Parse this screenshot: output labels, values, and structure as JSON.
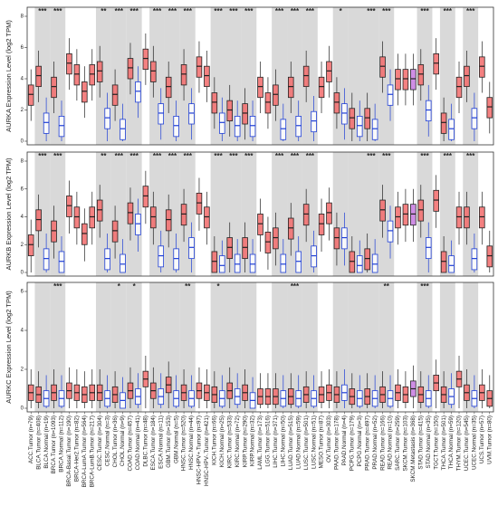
{
  "chart_data": {
    "type": "box",
    "tumor_color": "#f26b6b",
    "normal_color": "#1f3fd6",
    "metastasis_color": "#c77ae0",
    "categories": [
      "ACC.Tumor (n=79)",
      "BLCA.Tumor (n=408)",
      "BLCA.Normal (n=19)",
      "BRCA.Tumor (n=1093)",
      "BRCA.Normal (n=112)",
      "BRCA-Basal.Tumor (n=190)",
      "BRCA-Her2.Tumor (n=82)",
      "BRCA-LumA.Tumor (n=564)",
      "BRCA-LumB.Tumor (n=217)",
      "CESC.Tumor (n=304)",
      "CESC.Normal (n=3)",
      "CHOL.Tumor (n=36)",
      "CHOL.Normal (n=9)",
      "COAD.Tumor (n=457)",
      "COAD.Normal (n=41)",
      "DLBC.Tumor (n=48)",
      "ESCA.Tumor (n=184)",
      "ESCA.Normal (n=11)",
      "GBM.Tumor (n=153)",
      "GBM.Normal (n=5)",
      "HNSC.Tumor (n=520)",
      "HNSC.Normal (n=44)",
      "HNSC-HPV+.Tumor (n=97)",
      "HNSC-HPV-.Tumor (n=421)",
      "KICH.Tumor (n=66)",
      "KICH.Normal (n=25)",
      "KIRC.Tumor (n=533)",
      "KIRC.Normal (n=72)",
      "KIRP.Tumor (n=290)",
      "KIRP.Normal (n=32)",
      "LAML.Tumor (n=173)",
      "LGG.Tumor (n=516)",
      "LIHC.Tumor (n=371)",
      "LIHC.Normal (n=50)",
      "LUAD.Tumor (n=515)",
      "LUAD.Normal (n=59)",
      "LUSC.Tumor (n=501)",
      "LUSC.Normal (n=51)",
      "MESO.Tumor (n=87)",
      "OV.Tumor (n=303)",
      "PAAD.Tumor (n=178)",
      "PAAD.Normal (n=4)",
      "PCPG.Tumor (n=179)",
      "PCPG.Normal (n=3)",
      "PRAD.Tumor (n=497)",
      "PRAD.Normal (n=52)",
      "READ.Tumor (n=166)",
      "READ.Normal (n=10)",
      "SARC.Tumor (n=259)",
      "SKCM.Tumor (n=103)",
      "SKCM.Metastasis (n=368)",
      "STAD.Tumor (n=415)",
      "STAD.Normal (n=35)",
      "TGCT.Tumor (n=150)",
      "THCA.Tumor (n=501)",
      "THCA.Normal (n=59)",
      "THYM.Tumor (n=120)",
      "UCEC.Tumor (n=545)",
      "UCEC.Normal (n=35)",
      "UCS.Tumor (n=57)",
      "UVM.Tumor (n=80)"
    ],
    "panels": [
      {
        "ylabel": "AURKA Expression Level (log2 TPM)",
        "ylim": [
          0,
          8
        ],
        "yticks": [
          0,
          2,
          4,
          6,
          8
        ],
        "median": [
          3.0,
          4.2,
          1.2,
          3.5,
          1.0,
          5.0,
          4.3,
          3.2,
          4.3,
          4.5,
          1.5,
          3.0,
          0.8,
          4.7,
          3.2,
          5.3,
          4.5,
          1.8,
          3.5,
          1.0,
          4.3,
          1.8,
          4.8,
          4.2,
          2.5,
          1.2,
          2.0,
          1.0,
          1.8,
          1.0,
          3.5,
          2.5,
          3.0,
          0.8,
          3.5,
          1.0,
          4.2,
          1.3,
          3.5,
          4.5,
          2.5,
          1.8,
          1.5,
          1.0,
          1.5,
          0.8,
          4.8,
          3.0,
          4.0,
          4.0,
          4.0,
          4.3,
          2.0,
          5.0,
          1.2,
          0.8,
          3.5,
          4.2,
          1.5,
          4.8,
          2.2
        ],
        "q1": [
          2.3,
          3.5,
          0.5,
          2.8,
          0.3,
          4.3,
          3.6,
          2.5,
          3.6,
          3.8,
          0.8,
          2.3,
          0.1,
          4.0,
          2.5,
          4.6,
          3.8,
          1.1,
          2.8,
          0.3,
          3.6,
          1.1,
          4.1,
          3.5,
          1.8,
          0.5,
          1.3,
          0.3,
          1.1,
          0.3,
          2.8,
          1.8,
          2.3,
          0.1,
          2.8,
          0.3,
          3.5,
          0.6,
          2.8,
          3.8,
          1.8,
          1.1,
          0.8,
          0.3,
          0.8,
          0.1,
          4.1,
          2.3,
          3.3,
          3.3,
          3.3,
          3.6,
          1.3,
          4.3,
          0.5,
          0.1,
          2.8,
          3.5,
          0.8,
          4.1,
          1.5
        ],
        "q3": [
          3.6,
          4.8,
          1.8,
          4.1,
          1.6,
          5.6,
          4.9,
          3.8,
          4.9,
          5.1,
          2.1,
          3.6,
          1.4,
          5.3,
          3.8,
          5.9,
          5.1,
          2.4,
          4.1,
          1.6,
          4.9,
          2.4,
          5.4,
          4.8,
          3.1,
          1.8,
          2.6,
          1.6,
          2.4,
          1.6,
          4.1,
          3.1,
          3.6,
          1.4,
          4.1,
          1.6,
          4.8,
          1.9,
          4.1,
          5.1,
          3.1,
          2.4,
          2.1,
          1.6,
          2.1,
          1.4,
          5.4,
          3.6,
          4.6,
          4.6,
          4.6,
          4.9,
          2.6,
          5.6,
          1.8,
          1.4,
          4.1,
          4.8,
          2.1,
          5.4,
          2.8
        ],
        "whisker_low": [
          1.3,
          2.5,
          0.0,
          1.8,
          0.0,
          3.3,
          2.6,
          1.5,
          2.6,
          2.8,
          0.0,
          1.3,
          0.0,
          3.0,
          1.5,
          3.6,
          2.8,
          0.1,
          1.8,
          0.0,
          2.6,
          0.1,
          3.1,
          2.5,
          0.8,
          0.0,
          0.3,
          0.0,
          0.1,
          0.0,
          1.8,
          0.8,
          1.3,
          0.0,
          1.8,
          0.0,
          2.5,
          0.0,
          1.8,
          2.8,
          0.8,
          0.1,
          0.0,
          0.0,
          0.0,
          0.0,
          3.1,
          1.3,
          2.3,
          2.3,
          2.3,
          2.6,
          0.3,
          3.3,
          0.0,
          0.0,
          1.8,
          2.5,
          0.0,
          3.1,
          0.5
        ],
        "whisker_high": [
          4.6,
          5.8,
          2.8,
          5.1,
          2.6,
          6.6,
          5.9,
          4.8,
          5.9,
          6.1,
          3.1,
          4.6,
          2.4,
          6.3,
          4.8,
          6.9,
          6.1,
          3.4,
          5.1,
          2.6,
          5.9,
          3.4,
          6.4,
          5.8,
          4.1,
          2.8,
          3.6,
          2.6,
          3.4,
          2.6,
          5.1,
          4.1,
          4.6,
          2.4,
          5.1,
          2.6,
          5.8,
          2.9,
          5.1,
          6.1,
          4.1,
          3.4,
          3.1,
          2.6,
          3.1,
          2.4,
          6.4,
          4.6,
          5.6,
          5.6,
          5.6,
          5.9,
          3.6,
          6.6,
          2.8,
          2.4,
          5.1,
          5.8,
          3.1,
          6.4,
          3.8
        ],
        "significance": [
          null,
          "***",
          null,
          "***",
          null,
          null,
          null,
          null,
          null,
          "**",
          null,
          "***",
          null,
          "***",
          null,
          null,
          "***",
          null,
          "***",
          null,
          "***",
          null,
          null,
          null,
          "***",
          null,
          "***",
          null,
          "***",
          null,
          null,
          null,
          "***",
          null,
          "***",
          null,
          "***",
          null,
          null,
          null,
          "*",
          null,
          null,
          null,
          "***",
          null,
          "***",
          null,
          null,
          null,
          null,
          "***",
          null,
          null,
          "***",
          null,
          null,
          "***",
          null,
          null,
          null
        ]
      },
      {
        "ylabel": "AURKB Expression Level (log2 TPM)",
        "ylim": [
          0,
          8
        ],
        "yticks": [
          0,
          2,
          4,
          6,
          8
        ],
        "median": [
          2.0,
          3.8,
          1.0,
          3.0,
          0.8,
          4.8,
          4.0,
          2.8,
          4.0,
          4.5,
          1.0,
          3.0,
          0.6,
          4.3,
          3.5,
          5.5,
          4.0,
          1.2,
          3.8,
          1.0,
          4.2,
          1.8,
          5.0,
          4.0,
          0.8,
          0.5,
          1.8,
          0.6,
          1.8,
          0.6,
          3.5,
          2.2,
          2.5,
          0.6,
          3.2,
          0.8,
          4.2,
          1.2,
          3.5,
          4.3,
          2.5,
          2.5,
          0.8,
          0.5,
          1.0,
          0.6,
          4.5,
          3.0,
          4.0,
          4.2,
          4.2,
          4.5,
          1.8,
          5.2,
          0.8,
          0.5,
          4.0,
          4.0,
          1.0,
          4.0,
          1.2
        ],
        "q1": [
          1.2,
          3.0,
          0.2,
          2.2,
          0.0,
          4.0,
          3.2,
          2.0,
          3.2,
          3.7,
          0.2,
          2.2,
          0.0,
          3.5,
          2.7,
          4.7,
          3.2,
          0.4,
          3.0,
          0.2,
          3.4,
          1.0,
          4.2,
          3.2,
          0.0,
          0.0,
          1.0,
          0.0,
          1.0,
          0.0,
          2.7,
          1.4,
          1.7,
          0.0,
          2.4,
          0.0,
          3.4,
          0.4,
          2.7,
          3.5,
          1.7,
          1.7,
          0.0,
          0.0,
          0.2,
          0.0,
          3.7,
          2.2,
          3.2,
          3.4,
          3.4,
          3.7,
          1.0,
          4.4,
          0.0,
          0.0,
          3.2,
          3.2,
          0.2,
          3.2,
          0.4
        ],
        "q3": [
          2.7,
          4.5,
          1.7,
          3.7,
          1.5,
          5.5,
          4.7,
          3.5,
          4.7,
          5.2,
          1.7,
          3.7,
          1.3,
          5.0,
          4.2,
          6.2,
          4.7,
          1.9,
          4.5,
          1.7,
          4.9,
          2.5,
          5.7,
          4.7,
          1.5,
          1.2,
          2.5,
          1.3,
          2.5,
          1.3,
          4.2,
          2.9,
          3.2,
          1.3,
          3.9,
          1.5,
          4.9,
          1.9,
          4.2,
          5.0,
          3.2,
          3.2,
          1.5,
          1.2,
          1.7,
          1.3,
          5.2,
          3.7,
          4.7,
          4.9,
          4.9,
          5.2,
          2.5,
          5.9,
          1.5,
          1.2,
          4.7,
          4.7,
          1.7,
          4.7,
          1.9
        ],
        "whisker_low": [
          0.0,
          1.8,
          0.0,
          1.0,
          0.0,
          2.8,
          2.0,
          0.8,
          2.0,
          2.5,
          0.0,
          1.0,
          0.0,
          2.3,
          1.5,
          3.5,
          2.0,
          0.0,
          1.8,
          0.0,
          2.2,
          0.0,
          3.0,
          2.0,
          0.0,
          0.0,
          0.0,
          0.0,
          0.0,
          0.0,
          1.5,
          0.2,
          0.5,
          0.0,
          1.2,
          0.0,
          2.2,
          0.0,
          1.5,
          2.3,
          0.5,
          0.5,
          0.0,
          0.0,
          0.0,
          0.0,
          2.5,
          1.0,
          2.0,
          2.2,
          2.2,
          2.5,
          0.0,
          3.2,
          0.0,
          0.0,
          2.0,
          2.0,
          0.0,
          2.0,
          0.0
        ],
        "whisker_high": [
          3.8,
          5.6,
          2.8,
          4.8,
          2.6,
          6.6,
          5.8,
          4.6,
          5.8,
          6.3,
          2.8,
          4.8,
          2.4,
          6.1,
          5.3,
          7.3,
          5.8,
          3.0,
          5.6,
          2.8,
          6.0,
          3.6,
          6.8,
          5.8,
          2.6,
          2.3,
          3.6,
          2.4,
          3.6,
          2.4,
          5.3,
          4.0,
          4.3,
          2.4,
          5.0,
          2.6,
          6.0,
          3.0,
          5.3,
          6.1,
          4.3,
          4.3,
          2.6,
          2.3,
          2.8,
          2.4,
          6.3,
          4.8,
          5.8,
          6.0,
          6.0,
          6.3,
          3.6,
          7.0,
          2.6,
          2.3,
          5.8,
          5.8,
          2.8,
          5.8,
          3.0
        ],
        "significance": [
          null,
          "***",
          null,
          "***",
          null,
          null,
          null,
          null,
          null,
          "**",
          null,
          "***",
          null,
          "***",
          null,
          null,
          "***",
          null,
          "***",
          null,
          "***",
          null,
          null,
          null,
          "***",
          null,
          "***",
          null,
          "***",
          null,
          null,
          null,
          "***",
          null,
          "***",
          null,
          "***",
          null,
          null,
          null,
          null,
          null,
          null,
          null,
          "***",
          null,
          "***",
          null,
          null,
          null,
          null,
          "***",
          null,
          null,
          "***",
          null,
          null,
          "***",
          null,
          null,
          null
        ]
      },
      {
        "ylabel": "AURKC Expression Level (log2 TPM)",
        "ylim": [
          0,
          6
        ],
        "yticks": [
          0,
          2,
          4,
          6
        ],
        "median": [
          0.8,
          0.7,
          0.5,
          0.8,
          0.5,
          0.9,
          0.8,
          0.7,
          0.8,
          0.8,
          0.5,
          0.7,
          0.4,
          0.9,
          0.6,
          1.5,
          0.9,
          0.6,
          1.2,
          0.5,
          0.8,
          0.5,
          0.9,
          0.8,
          0.7,
          0.5,
          0.9,
          0.6,
          0.8,
          0.4,
          0.6,
          0.6,
          0.6,
          0.5,
          0.6,
          0.5,
          0.7,
          0.5,
          0.7,
          0.8,
          0.7,
          0.8,
          0.6,
          0.5,
          0.6,
          0.5,
          0.7,
          0.5,
          0.8,
          0.7,
          1.0,
          0.7,
          0.5,
          1.3,
          0.7,
          0.6,
          1.5,
          0.8,
          0.5,
          0.8,
          0.5
        ],
        "q1": [
          0.4,
          0.3,
          0.1,
          0.4,
          0.1,
          0.5,
          0.4,
          0.3,
          0.4,
          0.4,
          0.1,
          0.3,
          0.0,
          0.5,
          0.2,
          1.1,
          0.5,
          0.2,
          0.8,
          0.1,
          0.4,
          0.1,
          0.5,
          0.4,
          0.3,
          0.1,
          0.5,
          0.2,
          0.4,
          0.0,
          0.2,
          0.2,
          0.2,
          0.1,
          0.2,
          0.1,
          0.3,
          0.1,
          0.3,
          0.4,
          0.3,
          0.4,
          0.2,
          0.1,
          0.2,
          0.1,
          0.3,
          0.1,
          0.4,
          0.3,
          0.6,
          0.3,
          0.1,
          0.9,
          0.3,
          0.2,
          1.1,
          0.4,
          0.1,
          0.4,
          0.1
        ],
        "q3": [
          1.2,
          1.1,
          0.9,
          1.2,
          0.9,
          1.3,
          1.2,
          1.1,
          1.2,
          1.2,
          0.9,
          1.1,
          0.8,
          1.3,
          1.0,
          1.9,
          1.3,
          1.0,
          1.6,
          0.9,
          1.2,
          0.9,
          1.3,
          1.2,
          1.1,
          0.9,
          1.3,
          1.0,
          1.2,
          0.8,
          1.0,
          1.0,
          1.0,
          0.9,
          1.0,
          0.9,
          1.1,
          0.9,
          1.1,
          1.2,
          1.1,
          1.2,
          1.0,
          0.9,
          1.0,
          0.9,
          1.1,
          0.9,
          1.2,
          1.1,
          1.4,
          1.1,
          0.9,
          1.7,
          1.1,
          1.0,
          1.9,
          1.2,
          0.9,
          1.2,
          0.9
        ],
        "whisker_low": [
          0,
          0,
          0,
          0,
          0,
          0,
          0,
          0,
          0,
          0,
          0,
          0,
          0,
          0,
          0,
          0,
          0,
          0,
          0,
          0,
          0,
          0,
          0,
          0,
          0,
          0,
          0,
          0,
          0,
          0,
          0,
          0,
          0,
          0,
          0,
          0,
          0,
          0,
          0,
          0,
          0,
          0,
          0,
          0,
          0,
          0,
          0,
          0,
          0,
          0,
          0,
          0,
          0,
          0,
          0,
          0,
          0,
          0,
          0,
          0,
          0
        ],
        "whisker_high": [
          2.0,
          1.9,
          1.7,
          2.0,
          1.7,
          2.1,
          2.0,
          1.9,
          2.0,
          2.0,
          1.7,
          1.9,
          1.6,
          2.1,
          1.8,
          2.7,
          2.1,
          1.8,
          2.4,
          1.7,
          2.0,
          1.7,
          2.1,
          2.0,
          1.9,
          1.7,
          2.1,
          1.8,
          2.0,
          1.6,
          1.8,
          1.8,
          1.8,
          1.7,
          1.8,
          1.7,
          1.9,
          1.7,
          1.9,
          2.0,
          1.9,
          2.0,
          1.8,
          1.7,
          1.8,
          1.7,
          1.9,
          1.7,
          2.0,
          1.9,
          2.2,
          1.9,
          1.7,
          2.5,
          1.9,
          1.8,
          2.7,
          2.0,
          1.7,
          2.0,
          1.7
        ],
        "significance": [
          null,
          null,
          null,
          "***",
          null,
          null,
          null,
          null,
          null,
          null,
          null,
          "*",
          null,
          "*",
          null,
          null,
          null,
          null,
          null,
          null,
          "**",
          null,
          null,
          null,
          "*",
          null,
          null,
          null,
          null,
          null,
          null,
          null,
          null,
          null,
          "***",
          null,
          null,
          null,
          null,
          null,
          null,
          null,
          null,
          null,
          null,
          null,
          "**",
          null,
          null,
          null,
          null,
          "***",
          null,
          null,
          null,
          null,
          null,
          null,
          null,
          null,
          null
        ]
      }
    ]
  }
}
